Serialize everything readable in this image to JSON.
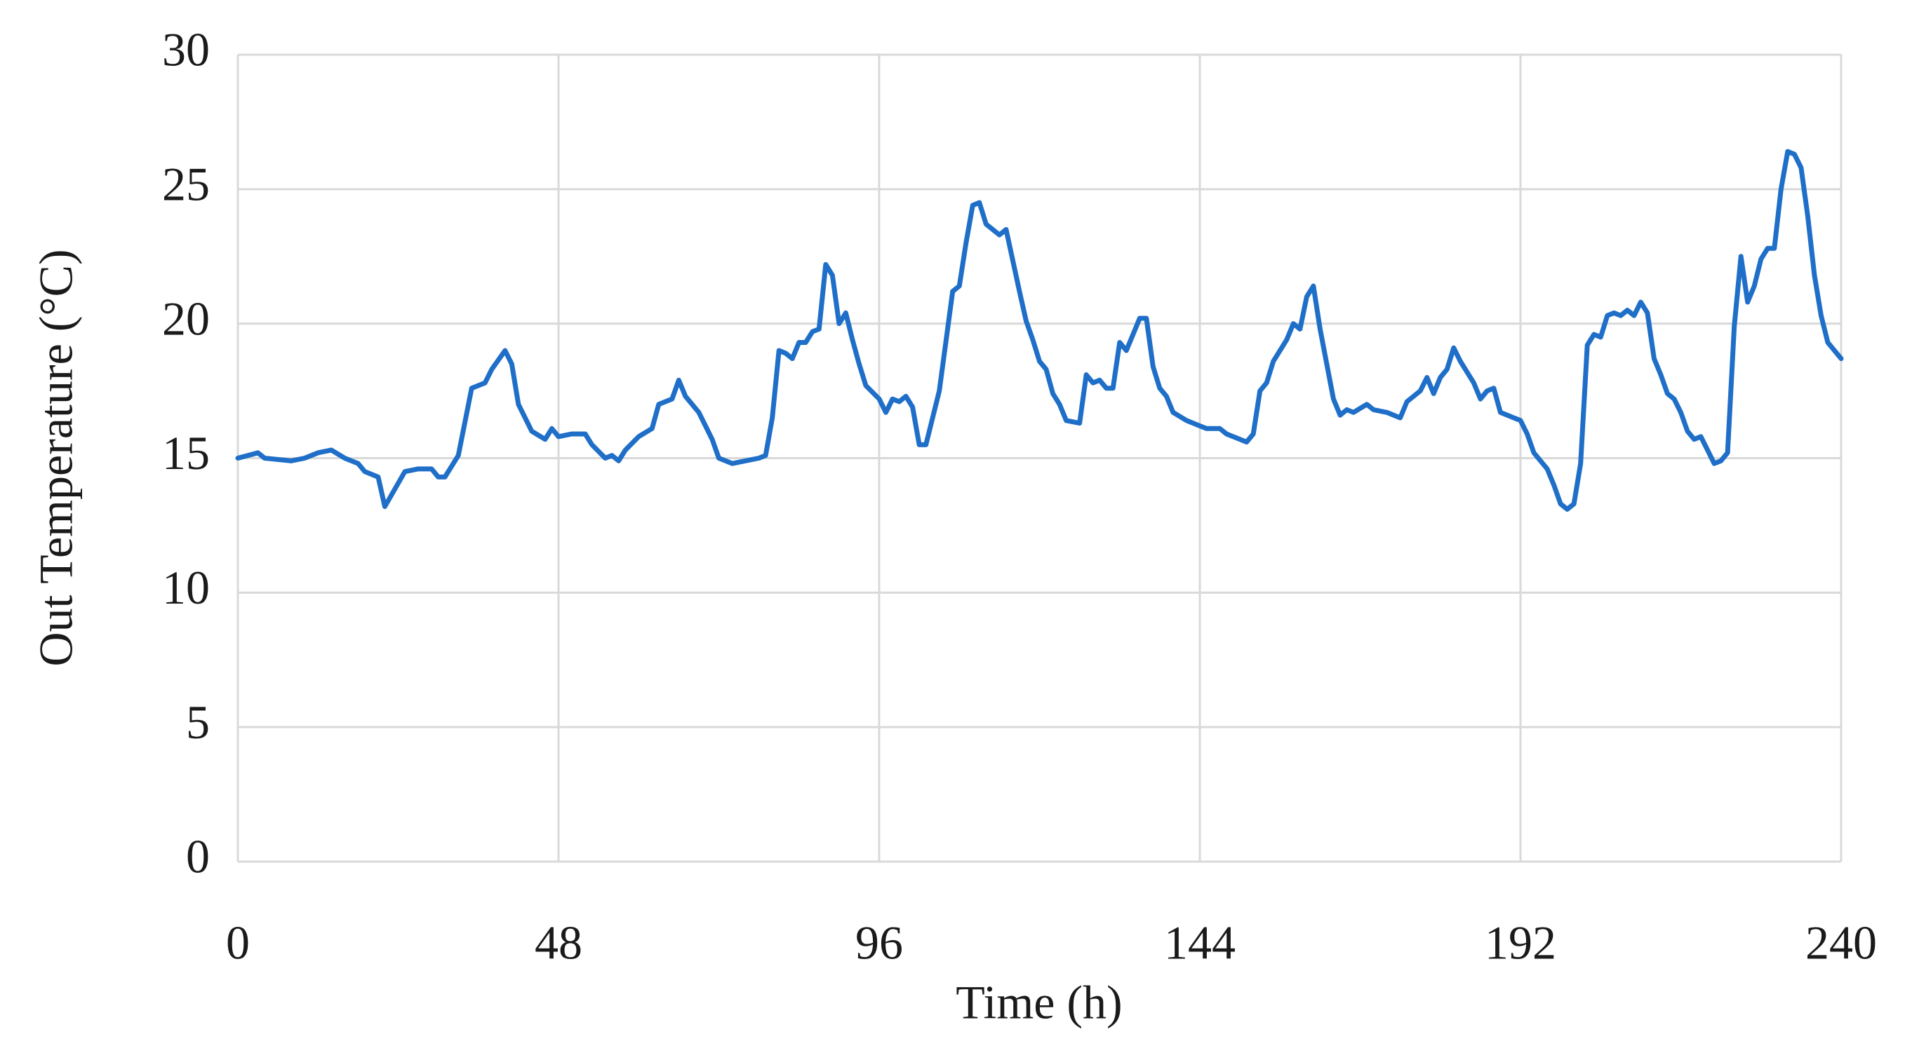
{
  "chart_data": {
    "type": "line",
    "xlabel": "Time (h)",
    "ylabel": "Out Temperature (°C)",
    "x": [
      0,
      3,
      4,
      8,
      10,
      12,
      14,
      16,
      18,
      19,
      21,
      22,
      25,
      27,
      29,
      30,
      31,
      33,
      35,
      37,
      38,
      40,
      41,
      42,
      44,
      46,
      47,
      48,
      50,
      52,
      53,
      55,
      56,
      57,
      58,
      60,
      62,
      63,
      65,
      66,
      67,
      69,
      70,
      71,
      72,
      74,
      76,
      78,
      79,
      80,
      81,
      82,
      83,
      84,
      85,
      86,
      87,
      88,
      89,
      90,
      91,
      92,
      93,
      94,
      96,
      97,
      98,
      99,
      100,
      101,
      102,
      103,
      105,
      107,
      108,
      109,
      110,
      111,
      112,
      113,
      114,
      115,
      117,
      118,
      119,
      120,
      121,
      122,
      123,
      124,
      126,
      127,
      128,
      129,
      130,
      131,
      132,
      133,
      135,
      136,
      137,
      138,
      139,
      140,
      142,
      143,
      144,
      145,
      147,
      148,
      150,
      151,
      152,
      153,
      154,
      155,
      157,
      158,
      159,
      160,
      161,
      162,
      163,
      164,
      165,
      166,
      167,
      169,
      170,
      172,
      174,
      175,
      177,
      178,
      179,
      180,
      181,
      182,
      183,
      185,
      186,
      187,
      188,
      189,
      190,
      192,
      193,
      194,
      196,
      197,
      198,
      199,
      200,
      201,
      202,
      203,
      204,
      205,
      206,
      207,
      208,
      209,
      210,
      211,
      212,
      213,
      214,
      215,
      216,
      217,
      218,
      219,
      220,
      221,
      222,
      223,
      224,
      225,
      226,
      227,
      228,
      229,
      230,
      231,
      232,
      233,
      234,
      235,
      236,
      237,
      238,
      240
    ],
    "series": [
      {
        "name": "Out Temperature",
        "color": "#1f6fc8",
        "values": [
          15.0,
          15.2,
          15.0,
          14.9,
          15.0,
          15.2,
          15.3,
          15.0,
          14.8,
          14.5,
          14.3,
          13.2,
          14.5,
          14.6,
          14.6,
          14.3,
          14.3,
          15.1,
          17.6,
          17.8,
          18.3,
          19.0,
          18.5,
          17.0,
          16.0,
          15.7,
          16.1,
          15.8,
          15.9,
          15.9,
          15.5,
          15.0,
          15.1,
          14.9,
          15.3,
          15.8,
          16.1,
          17.0,
          17.2,
          17.9,
          17.3,
          16.7,
          16.2,
          15.7,
          15.0,
          14.8,
          14.9,
          15.0,
          15.1,
          16.5,
          19.0,
          18.9,
          18.7,
          19.3,
          19.3,
          19.7,
          19.8,
          22.2,
          21.8,
          20.0,
          20.4,
          19.4,
          18.5,
          17.7,
          17.2,
          16.7,
          17.2,
          17.1,
          17.3,
          16.9,
          15.5,
          15.5,
          17.5,
          21.2,
          21.4,
          23.0,
          24.4,
          24.5,
          23.7,
          23.5,
          23.3,
          23.5,
          21.2,
          20.1,
          19.4,
          18.6,
          18.3,
          17.4,
          17.0,
          16.4,
          16.3,
          18.1,
          17.8,
          17.9,
          17.6,
          17.6,
          19.3,
          19.0,
          20.2,
          20.2,
          18.4,
          17.6,
          17.3,
          16.7,
          16.4,
          16.3,
          16.2,
          16.1,
          16.1,
          15.9,
          15.7,
          15.6,
          15.9,
          17.5,
          17.8,
          18.6,
          19.4,
          20.0,
          19.8,
          21.0,
          21.4,
          19.8,
          18.5,
          17.2,
          16.6,
          16.8,
          16.7,
          17.0,
          16.8,
          16.7,
          16.5,
          17.1,
          17.5,
          18.0,
          17.4,
          18.0,
          18.3,
          19.1,
          18.6,
          17.8,
          17.2,
          17.5,
          17.6,
          16.7,
          16.6,
          16.4,
          15.9,
          15.2,
          14.6,
          14.0,
          13.3,
          13.1,
          13.3,
          14.8,
          19.2,
          19.6,
          19.5,
          20.3,
          20.4,
          20.3,
          20.5,
          20.3,
          20.8,
          20.4,
          18.7,
          18.1,
          17.4,
          17.2,
          16.7,
          16.0,
          15.7,
          15.8,
          15.3,
          14.8,
          14.9,
          15.2,
          19.9,
          22.5,
          20.8,
          21.4,
          22.4,
          22.8,
          22.8,
          25.0,
          26.4,
          26.3,
          25.8,
          24.0,
          21.8,
          20.3,
          19.3,
          18.7
        ]
      }
    ],
    "xlim": [
      0,
      240
    ],
    "xticks": [
      0,
      48,
      96,
      144,
      192,
      240
    ],
    "ylim": [
      0,
      30
    ],
    "yticks": [
      0,
      5,
      10,
      15,
      20,
      25,
      30
    ],
    "grid": true
  }
}
